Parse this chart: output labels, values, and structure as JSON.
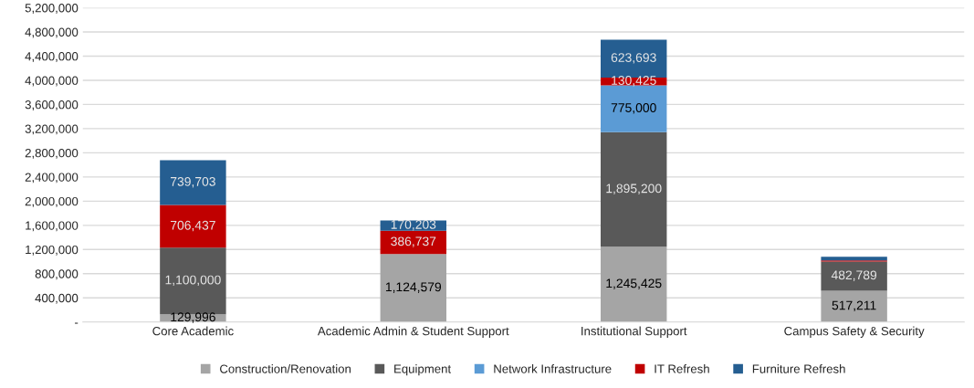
{
  "chart_data": {
    "type": "bar",
    "stacked": true,
    "categories": [
      "Core Academic",
      "Academic Admin & Student Support",
      "Institutional Support",
      "Campus Safety & Security"
    ],
    "series": [
      {
        "name": "Construction/Renovation",
        "color": "#a5a5a5",
        "values": [
          129996,
          1124579,
          1245425,
          517211
        ],
        "value_labels": [
          "129,996",
          "1,124,579",
          "1,245,425",
          "517,211"
        ]
      },
      {
        "name": "Equipment",
        "color": "#595959",
        "values": [
          1100000,
          null,
          1895200,
          482789
        ],
        "value_labels": [
          "1,100,000",
          null,
          "1,895,200",
          "482,789"
        ]
      },
      {
        "name": "Network Infrastructure",
        "color": "#5b9bd5",
        "values": [
          null,
          null,
          775000,
          null
        ],
        "value_labels": [
          null,
          null,
          "775,000",
          null
        ]
      },
      {
        "name": "IT Refresh",
        "color": "#c00000",
        "values": [
          706437,
          386737,
          130425,
          20000
        ],
        "value_labels": [
          "706,437",
          "386,737",
          "130,425",
          null
        ]
      },
      {
        "name": "Furniture Refresh",
        "color": "#255e91",
        "values": [
          739703,
          170203,
          623693,
          60000
        ],
        "value_labels": [
          "739,703",
          "170,203",
          "623,693",
          null
        ]
      }
    ],
    "ylim": [
      0,
      5200000
    ],
    "yticks": [
      {
        "value": 0,
        "label": "-"
      },
      {
        "value": 400000,
        "label": "400,000"
      },
      {
        "value": 800000,
        "label": "800,000"
      },
      {
        "value": 1200000,
        "label": "1,200,000"
      },
      {
        "value": 1600000,
        "label": "1,600,000"
      },
      {
        "value": 2000000,
        "label": "2,000,000"
      },
      {
        "value": 2400000,
        "label": "2,400,000"
      },
      {
        "value": 2800000,
        "label": "2,800,000"
      },
      {
        "value": 3200000,
        "label": "3,200,000"
      },
      {
        "value": 3600000,
        "label": "3,600,000"
      },
      {
        "value": 4000000,
        "label": "4,000,000"
      },
      {
        "value": 4400000,
        "label": "4,400,000"
      },
      {
        "value": 4800000,
        "label": "4,800,000"
      },
      {
        "value": 5200000,
        "label": "5,200,000"
      }
    ],
    "grid": "y",
    "legend": "bottom"
  }
}
